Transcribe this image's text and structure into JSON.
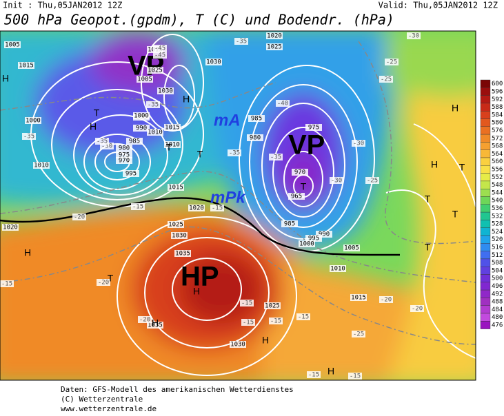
{
  "header": {
    "init": "Init : Thu,05JAN2012 12Z",
    "valid": "Valid: Thu,05JAN2012 12Z",
    "title": "500 hPa Geopot.(gpdm), T (C) und Bodendr. (hPa)"
  },
  "map_labels": [
    "VP",
    "mA",
    "VP",
    "mPk",
    "HP"
  ],
  "pressure_labels": [
    "1005",
    "1015",
    "1000",
    "995",
    "990",
    "985",
    "980",
    "975",
    "970",
    "1010",
    "1015",
    "1025",
    "1030",
    "1015",
    "1010",
    "1005",
    "1000",
    "995",
    "985",
    "980",
    "975",
    "970",
    "965",
    "985",
    "990",
    "995",
    "1000",
    "1005",
    "1010",
    "1015",
    "1020",
    "1025",
    "1030",
    "1035",
    "1035",
    "1030",
    "1025",
    "1020",
    "1015",
    "1010",
    "1020",
    "1025",
    "1030"
  ],
  "temperature_labels": [
    "-45",
    "-45",
    "-35",
    "-35",
    "-30",
    "-35",
    "-35",
    "-40",
    "-35",
    "-30",
    "-30",
    "-25",
    "-25",
    "-25",
    "-20",
    "-20",
    "-15",
    "-15",
    "-20",
    "-15",
    "-15",
    "-15",
    "-15",
    "-20",
    "-25",
    "-20",
    "-15",
    "-15",
    "-15",
    "-30",
    "-35"
  ],
  "centers": [
    "H",
    "H",
    "T",
    "H",
    "T",
    "T",
    "H",
    "T",
    "H",
    "T",
    "T",
    "T",
    "T",
    "H",
    "H",
    "H",
    "H",
    "T",
    "H"
  ],
  "legend": {
    "values": [
      600,
      596,
      592,
      588,
      584,
      580,
      576,
      572,
      568,
      564,
      560,
      556,
      552,
      548,
      544,
      540,
      536,
      532,
      528,
      524,
      520,
      516,
      512,
      508,
      504,
      500,
      496,
      492,
      488,
      484,
      480,
      476
    ],
    "colors": [
      "#7a0606",
      "#9a0e0e",
      "#b41a14",
      "#c82a18",
      "#d8401c",
      "#e2581e",
      "#ea7022",
      "#f08a28",
      "#f5a030",
      "#f8b838",
      "#fad040",
      "#f8e048",
      "#e6ec48",
      "#c4e64a",
      "#9cde50",
      "#6ed658",
      "#40ce70",
      "#20c690",
      "#10c0b0",
      "#10b4d2",
      "#20a4ea",
      "#308cf0",
      "#406ef0",
      "#5052e8",
      "#6040e0",
      "#7030d8",
      "#8028d0",
      "#9028c8",
      "#a030c0",
      "#b23cd0",
      "#c24ade",
      "#9a14c0"
    ]
  },
  "footer": [
    "Daten: GFS-Modell des amerikanischen Wetterdienstes",
    "(C) Wetterzentrale",
    "www.wetterzentrale.de"
  ]
}
